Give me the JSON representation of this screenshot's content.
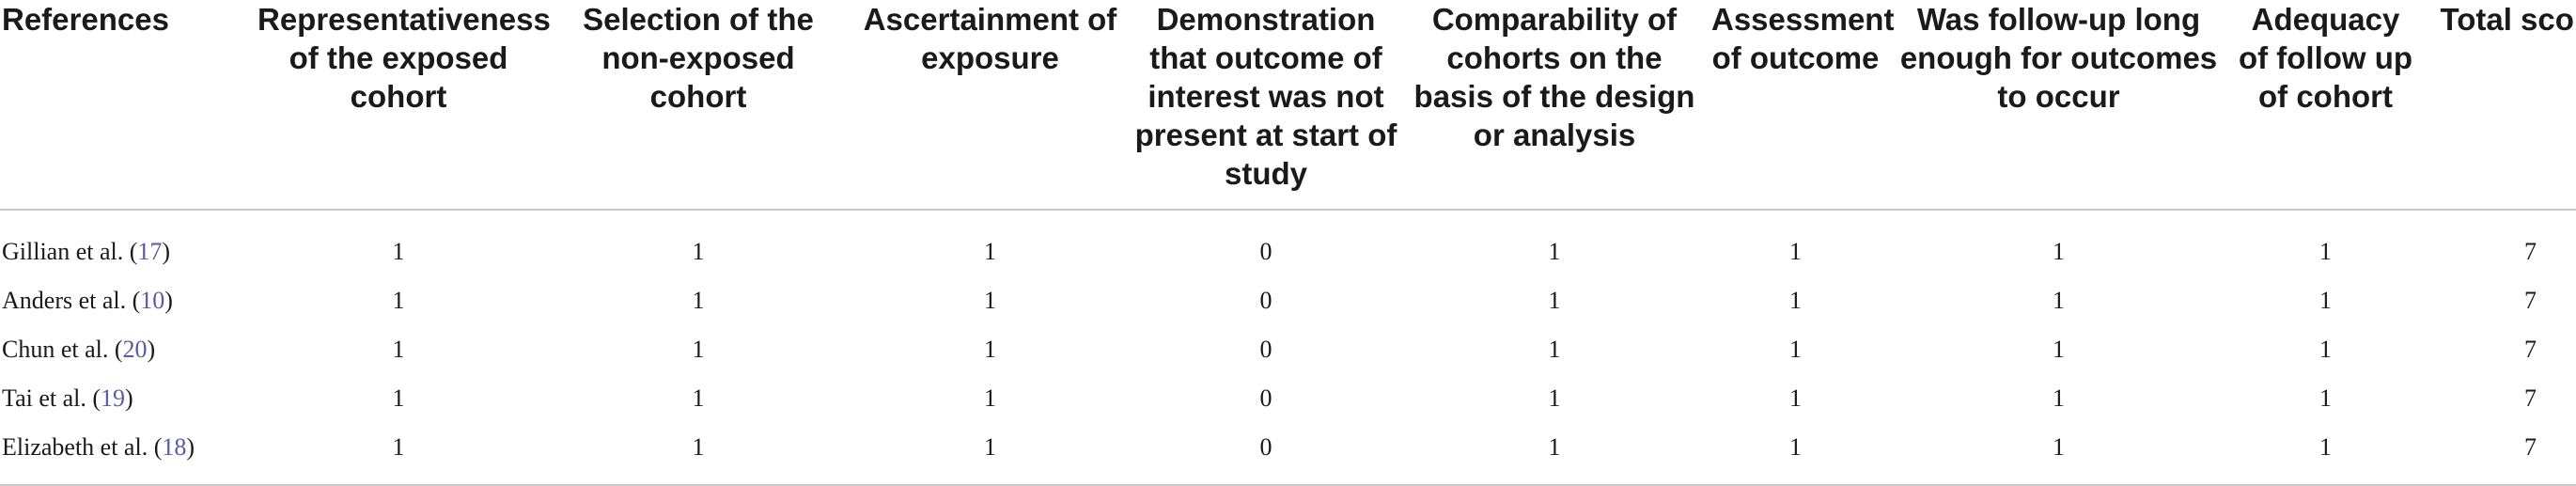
{
  "table": {
    "headers": [
      "References",
      "Representativeness of the exposed cohort",
      "Selection of the non-exposed cohort",
      "Ascertainment of exposure",
      "Demonstration that outcome of interest was not present at start of study",
      "Comparability of cohorts on the basis of the design or analysis",
      "Assessment of outcome",
      "Was follow-up long enough for outcomes to occur",
      "Adequacy of follow up of cohort",
      "Total scores"
    ],
    "rows": [
      {
        "author": "Gillian et al. (",
        "ref": "17",
        "close": ")",
        "values": [
          "1",
          "1",
          "1",
          "0",
          "1",
          "1",
          "1",
          "1",
          "7"
        ]
      },
      {
        "author": "Anders et al. (",
        "ref": "10",
        "close": ")",
        "values": [
          "1",
          "1",
          "1",
          "0",
          "1",
          "1",
          "1",
          "1",
          "7"
        ]
      },
      {
        "author": "Chun et al. (",
        "ref": "20",
        "close": ")",
        "values": [
          "1",
          "1",
          "1",
          "0",
          "1",
          "1",
          "1",
          "1",
          "7"
        ]
      },
      {
        "author": "Tai et al. (",
        "ref": "19",
        "close": ")",
        "values": [
          "1",
          "1",
          "1",
          "0",
          "1",
          "1",
          "1",
          "1",
          "7"
        ]
      },
      {
        "author": "Elizabeth et al. (",
        "ref": "18",
        "close": ")",
        "values": [
          "1",
          "1",
          "1",
          "0",
          "1",
          "1",
          "1",
          "1",
          "7"
        ]
      }
    ],
    "colors": {
      "text": "#1a1a1a",
      "citation_link": "#5a5aa8",
      "rule": "#c8c8c8"
    }
  }
}
